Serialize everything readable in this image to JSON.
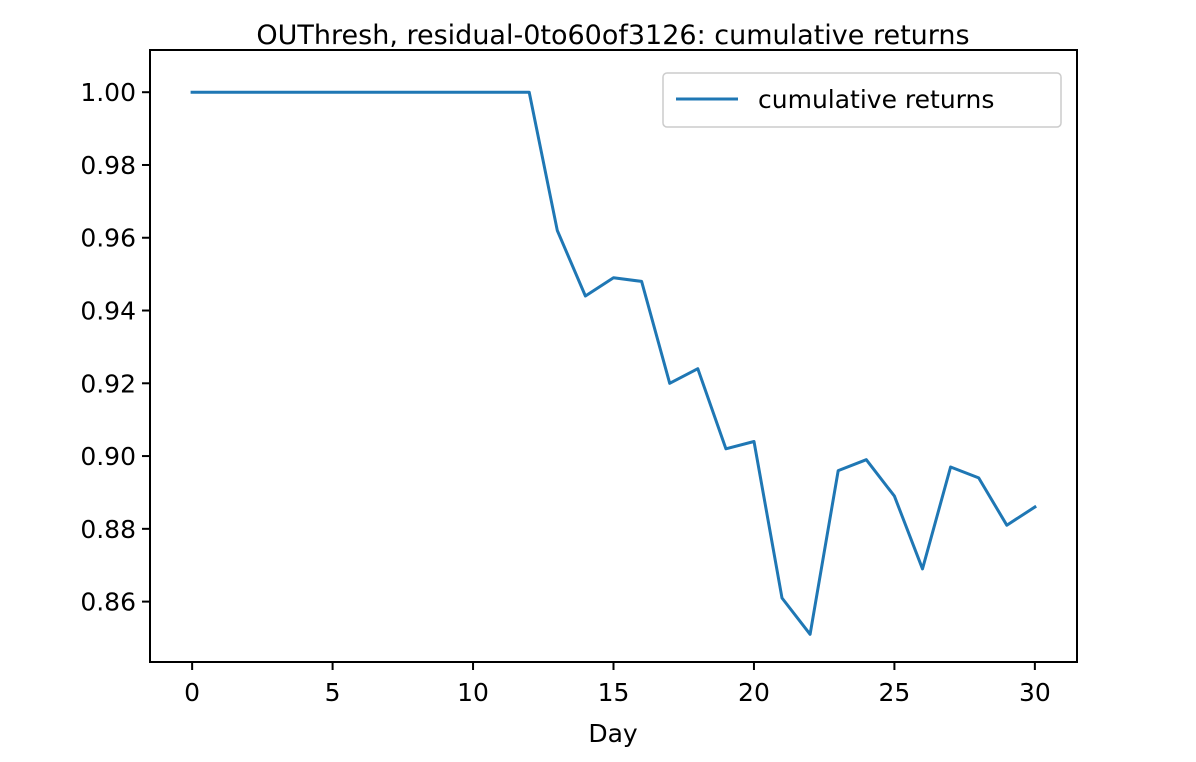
{
  "chart_data": {
    "type": "line",
    "title": "OUThresh, residual-0to60of3126: cumulative returns",
    "xlabel": "Day",
    "ylabel": "",
    "xlim": [
      -1.5,
      31.5
    ],
    "ylim": [
      0.8434,
      1.0116
    ],
    "x_ticks": [
      0,
      5,
      10,
      15,
      20,
      25,
      30
    ],
    "y_ticks": [
      0.86,
      0.88,
      0.9,
      0.92,
      0.94,
      0.96,
      0.98,
      1.0
    ],
    "grid": false,
    "legend_position": "top-right",
    "series": [
      {
        "name": "cumulative returns",
        "color": "#1f77b4",
        "x": [
          0,
          1,
          2,
          3,
          4,
          5,
          6,
          7,
          8,
          9,
          10,
          11,
          12,
          13,
          14,
          15,
          16,
          17,
          18,
          19,
          20,
          21,
          22,
          23,
          24,
          25,
          26,
          27,
          28,
          29,
          30
        ],
        "y": [
          1.0,
          1.0,
          1.0,
          1.0,
          1.0,
          1.0,
          1.0,
          1.0,
          1.0,
          1.0,
          1.0,
          1.0,
          1.0,
          0.962,
          0.944,
          0.949,
          0.948,
          0.92,
          0.924,
          0.902,
          0.904,
          0.861,
          0.851,
          0.896,
          0.899,
          0.889,
          0.869,
          0.897,
          0.894,
          0.881,
          0.886
        ]
      }
    ]
  }
}
